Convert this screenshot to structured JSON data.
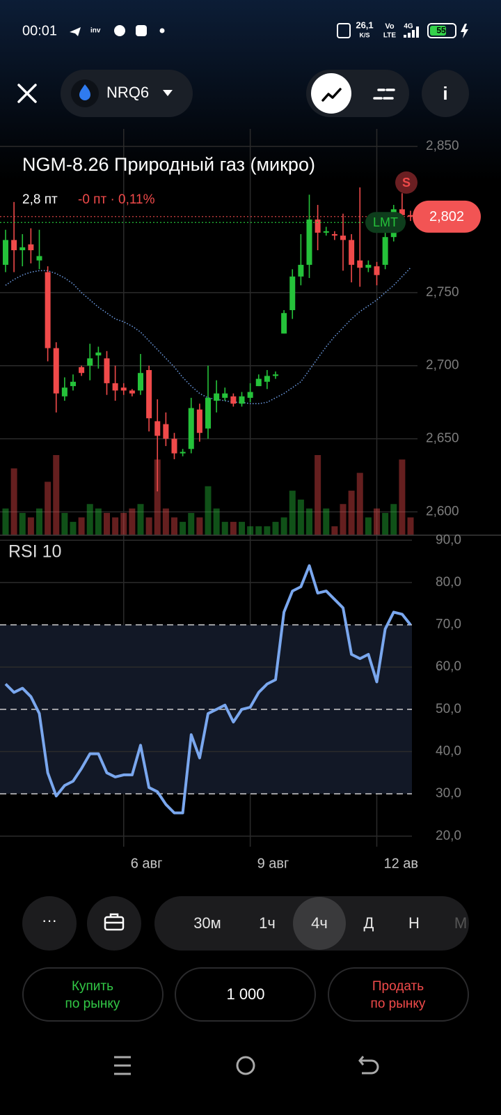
{
  "status_bar": {
    "time": "00:01",
    "speed": "26,1",
    "speed_unit": "K/S",
    "volte_top": "Vo",
    "volte_bottom": "LTE",
    "signal": "4G",
    "battery": "55"
  },
  "header": {
    "ticker": "NRQ6"
  },
  "chart_data": [
    {
      "type": "candlestick",
      "title": "NGM-8.26 Природный газ (микро)",
      "points": "2,8 пт",
      "change": "-0 пт · 0,11%",
      "stop_marker": "S",
      "last_price": {
        "value": 2.802,
        "label": "2,802"
      },
      "limit_order": {
        "value": 2.798,
        "label": "LMT"
      },
      "up_color": "#25c23a",
      "down_color": "#f04a4a",
      "ma_color": "#6f9fe8",
      "grid": true,
      "categories": [
        null,
        null,
        null,
        null,
        null,
        null,
        null,
        null,
        null,
        null,
        null,
        null,
        null,
        null,
        "6 авг",
        null,
        null,
        null,
        null,
        null,
        null,
        null,
        null,
        null,
        null,
        null,
        null,
        null,
        null,
        "9 авг",
        null,
        null,
        null,
        null,
        null,
        null,
        null,
        null,
        null,
        null,
        null,
        null,
        null,
        null,
        "12 ав",
        null,
        null,
        null,
        null
      ],
      "open": [
        2.769,
        2.786,
        2.779,
        2.783,
        2.772,
        2.764,
        2.712,
        2.679,
        2.686,
        2.699,
        2.7,
        2.707,
        2.705,
        2.688,
        2.685,
        2.683,
        2.683,
        2.697,
        2.662,
        2.66,
        2.65,
        2.64,
        2.643,
        2.67,
        2.657,
        2.676,
        2.678,
        2.679,
        2.674,
        2.678,
        2.686,
        2.689,
        2.693,
        2.722,
        2.738,
        2.761,
        2.769,
        2.8,
        2.791,
        2.79,
        2.789,
        2.786,
        2.772,
        2.767,
        2.768,
        2.769,
        2.788,
        2.807,
        2.803
      ],
      "high": [
        2.793,
        2.812,
        2.79,
        2.794,
        2.793,
        2.768,
        2.716,
        2.692,
        2.694,
        2.7,
        2.715,
        2.713,
        2.71,
        2.7,
        2.688,
        2.684,
        2.708,
        2.7,
        2.677,
        2.668,
        2.654,
        2.643,
        2.678,
        2.674,
        2.7,
        2.69,
        2.685,
        2.681,
        2.682,
        2.688,
        2.694,
        2.697,
        2.696,
        2.738,
        2.766,
        2.79,
        2.817,
        2.81,
        2.795,
        2.792,
        2.804,
        2.79,
        2.822,
        2.772,
        2.771,
        2.796,
        2.81,
        2.818,
        2.806
      ],
      "low": [
        2.764,
        2.764,
        2.768,
        2.77,
        2.766,
        2.703,
        2.668,
        2.676,
        2.683,
        2.693,
        2.69,
        2.698,
        2.68,
        2.676,
        2.68,
        2.679,
        2.68,
        2.655,
        2.614,
        2.645,
        2.636,
        2.638,
        2.64,
        2.648,
        2.65,
        2.668,
        2.676,
        2.672,
        2.672,
        2.675,
        2.686,
        2.684,
        2.691,
        2.722,
        2.732,
        2.755,
        2.76,
        2.779,
        2.789,
        2.786,
        2.765,
        2.757,
        2.754,
        2.764,
        2.755,
        2.766,
        2.785,
        2.8,
        2.799
      ],
      "close": [
        2.786,
        2.779,
        2.781,
        2.779,
        2.775,
        2.712,
        2.681,
        2.685,
        2.689,
        2.695,
        2.705,
        2.709,
        2.688,
        2.683,
        2.683,
        2.681,
        2.695,
        2.664,
        2.652,
        2.65,
        2.64,
        2.641,
        2.671,
        2.654,
        2.678,
        2.681,
        2.681,
        2.674,
        2.679,
        2.682,
        2.691,
        2.693,
        2.694,
        2.736,
        2.761,
        2.769,
        2.8,
        2.791,
        2.792,
        2.789,
        2.786,
        2.769,
        2.767,
        2.769,
        2.762,
        2.788,
        2.807,
        2.803,
        2.802
      ],
      "ma": [
        2.755,
        2.759,
        2.762,
        2.764,
        2.765,
        2.765,
        2.763,
        2.76,
        2.756,
        2.75,
        2.745,
        2.74,
        2.736,
        2.732,
        2.73,
        2.727,
        2.723,
        2.717,
        2.711,
        2.705,
        2.699,
        2.692,
        2.686,
        2.681,
        2.678,
        2.677,
        2.676,
        2.675,
        2.675,
        2.674,
        2.674,
        2.675,
        2.678,
        2.681,
        2.685,
        2.689,
        2.697,
        2.705,
        2.713,
        2.72,
        2.726,
        2.732,
        2.737,
        2.741,
        2.745,
        2.75,
        2.755,
        2.761,
        2.767
      ],
      "volume": [
        30,
        75,
        25,
        20,
        30,
        60,
        90,
        25,
        15,
        20,
        35,
        30,
        25,
        20,
        25,
        30,
        35,
        20,
        85,
        30,
        20,
        15,
        25,
        20,
        55,
        30,
        15,
        15,
        15,
        10,
        10,
        10,
        15,
        20,
        50,
        40,
        30,
        90,
        30,
        10,
        35,
        50,
        70,
        20,
        30,
        25,
        35,
        85,
        20
      ],
      "ylim": [
        2.584,
        2.862
      ],
      "yticks": [
        {
          "value": 2.85,
          "label": "2,850"
        },
        {
          "value": 2.75,
          "label": "2,750"
        },
        {
          "value": 2.7,
          "label": "2,700"
        },
        {
          "value": 2.65,
          "label": "2,650"
        },
        {
          "value": 2.6,
          "label": "2,600"
        }
      ]
    },
    {
      "type": "line",
      "title": "RSI 10",
      "color": "#7aa7ee",
      "values": [
        56,
        54,
        55,
        53,
        49,
        35,
        29.5,
        32,
        33,
        36,
        39.5,
        39.5,
        35,
        34,
        34.5,
        34.5,
        41.5,
        31.5,
        30.5,
        27.5,
        25.5,
        25.5,
        44,
        38.5,
        49,
        50,
        51,
        47,
        50,
        50.5,
        54,
        56,
        57,
        73,
        78,
        79,
        84,
        77.5,
        78,
        76,
        74,
        63,
        62,
        63,
        56.5,
        69,
        73,
        72.5,
        70
      ],
      "levels": [
        30,
        50,
        70
      ],
      "ylim": [
        17.5,
        91.2
      ],
      "yticks": [
        {
          "value": 90,
          "label": "90,0"
        },
        {
          "value": 80,
          "label": "80,0"
        },
        {
          "value": 70,
          "label": "70,0"
        },
        {
          "value": 60,
          "label": "60,0"
        },
        {
          "value": 50,
          "label": "50,0"
        },
        {
          "value": 40,
          "label": "40,0"
        },
        {
          "value": 30,
          "label": "30,0"
        },
        {
          "value": 20,
          "label": "20,0"
        }
      ]
    }
  ],
  "timeframes": [
    "30м",
    "1ч",
    "4ч",
    "Д",
    "Н",
    "М"
  ],
  "actions": {
    "buy_line1": "Купить",
    "buy_line2": "по рынку",
    "quantity": "1 000",
    "sell_line1": "Продать",
    "sell_line2": "по рынку"
  }
}
